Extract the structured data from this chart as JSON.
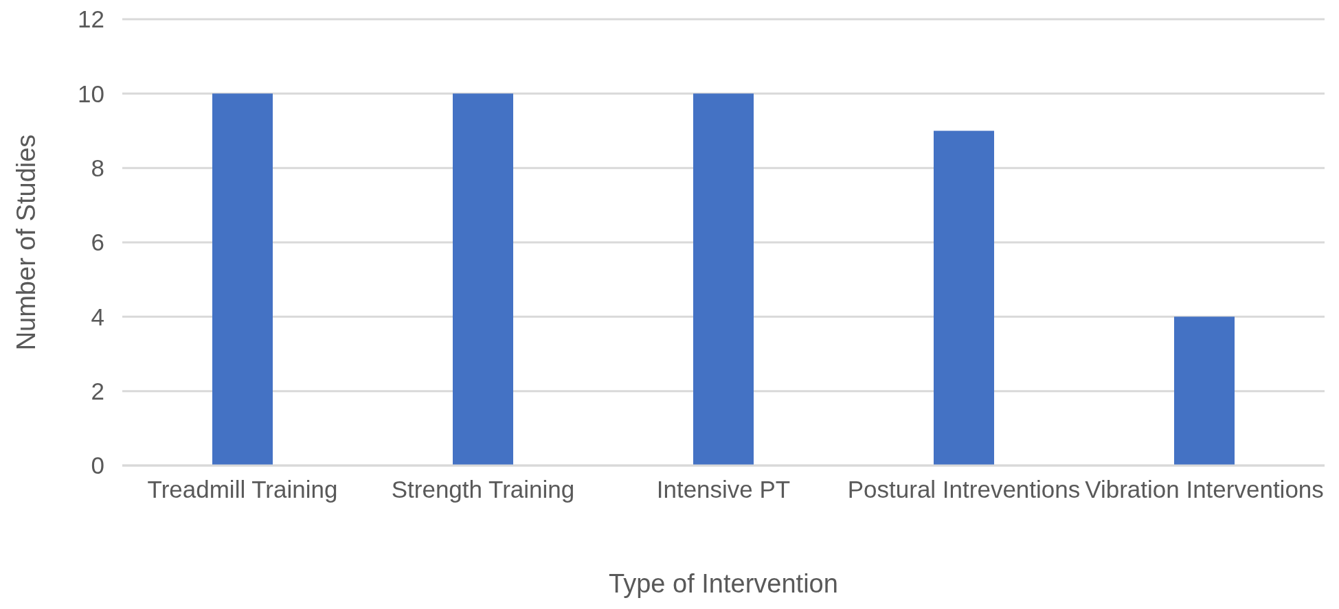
{
  "chart_data": {
    "type": "bar",
    "xlabel": "Type of Intervention",
    "ylabel": "Number of Studies",
    "categories": [
      "Treadmill Training",
      "Strength Training",
      "Intensive PT",
      "Postural Intreventions",
      "Vibration Interventions"
    ],
    "values": [
      10,
      10,
      10,
      9,
      4
    ],
    "color": "#4472c4",
    "ylim": [
      0,
      12
    ],
    "yticks": [
      0,
      2,
      4,
      6,
      8,
      10,
      12
    ],
    "grid": "y"
  }
}
